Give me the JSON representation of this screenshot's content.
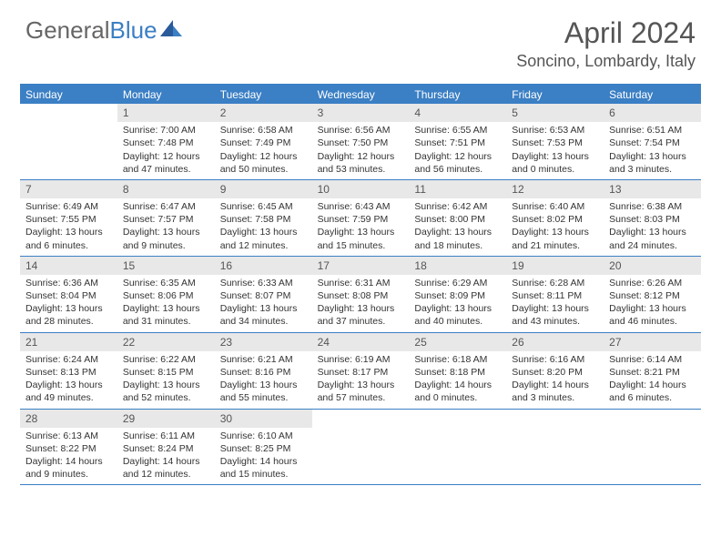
{
  "logo": {
    "part1": "General",
    "part2": "Blue"
  },
  "title": "April 2024",
  "location": "Soncino, Lombardy, Italy",
  "colors": {
    "header_bg": "#3b7fc4",
    "daynum_bg": "#e8e8e8",
    "text": "#333333",
    "title_color": "#555555"
  },
  "day_names": [
    "Sunday",
    "Monday",
    "Tuesday",
    "Wednesday",
    "Thursday",
    "Friday",
    "Saturday"
  ],
  "weeks": [
    [
      {
        "n": "",
        "sr": "",
        "ss": "",
        "dl": ""
      },
      {
        "n": "1",
        "sr": "Sunrise: 7:00 AM",
        "ss": "Sunset: 7:48 PM",
        "dl": "Daylight: 12 hours and 47 minutes."
      },
      {
        "n": "2",
        "sr": "Sunrise: 6:58 AM",
        "ss": "Sunset: 7:49 PM",
        "dl": "Daylight: 12 hours and 50 minutes."
      },
      {
        "n": "3",
        "sr": "Sunrise: 6:56 AM",
        "ss": "Sunset: 7:50 PM",
        "dl": "Daylight: 12 hours and 53 minutes."
      },
      {
        "n": "4",
        "sr": "Sunrise: 6:55 AM",
        "ss": "Sunset: 7:51 PM",
        "dl": "Daylight: 12 hours and 56 minutes."
      },
      {
        "n": "5",
        "sr": "Sunrise: 6:53 AM",
        "ss": "Sunset: 7:53 PM",
        "dl": "Daylight: 13 hours and 0 minutes."
      },
      {
        "n": "6",
        "sr": "Sunrise: 6:51 AM",
        "ss": "Sunset: 7:54 PM",
        "dl": "Daylight: 13 hours and 3 minutes."
      }
    ],
    [
      {
        "n": "7",
        "sr": "Sunrise: 6:49 AM",
        "ss": "Sunset: 7:55 PM",
        "dl": "Daylight: 13 hours and 6 minutes."
      },
      {
        "n": "8",
        "sr": "Sunrise: 6:47 AM",
        "ss": "Sunset: 7:57 PM",
        "dl": "Daylight: 13 hours and 9 minutes."
      },
      {
        "n": "9",
        "sr": "Sunrise: 6:45 AM",
        "ss": "Sunset: 7:58 PM",
        "dl": "Daylight: 13 hours and 12 minutes."
      },
      {
        "n": "10",
        "sr": "Sunrise: 6:43 AM",
        "ss": "Sunset: 7:59 PM",
        "dl": "Daylight: 13 hours and 15 minutes."
      },
      {
        "n": "11",
        "sr": "Sunrise: 6:42 AM",
        "ss": "Sunset: 8:00 PM",
        "dl": "Daylight: 13 hours and 18 minutes."
      },
      {
        "n": "12",
        "sr": "Sunrise: 6:40 AM",
        "ss": "Sunset: 8:02 PM",
        "dl": "Daylight: 13 hours and 21 minutes."
      },
      {
        "n": "13",
        "sr": "Sunrise: 6:38 AM",
        "ss": "Sunset: 8:03 PM",
        "dl": "Daylight: 13 hours and 24 minutes."
      }
    ],
    [
      {
        "n": "14",
        "sr": "Sunrise: 6:36 AM",
        "ss": "Sunset: 8:04 PM",
        "dl": "Daylight: 13 hours and 28 minutes."
      },
      {
        "n": "15",
        "sr": "Sunrise: 6:35 AM",
        "ss": "Sunset: 8:06 PM",
        "dl": "Daylight: 13 hours and 31 minutes."
      },
      {
        "n": "16",
        "sr": "Sunrise: 6:33 AM",
        "ss": "Sunset: 8:07 PM",
        "dl": "Daylight: 13 hours and 34 minutes."
      },
      {
        "n": "17",
        "sr": "Sunrise: 6:31 AM",
        "ss": "Sunset: 8:08 PM",
        "dl": "Daylight: 13 hours and 37 minutes."
      },
      {
        "n": "18",
        "sr": "Sunrise: 6:29 AM",
        "ss": "Sunset: 8:09 PM",
        "dl": "Daylight: 13 hours and 40 minutes."
      },
      {
        "n": "19",
        "sr": "Sunrise: 6:28 AM",
        "ss": "Sunset: 8:11 PM",
        "dl": "Daylight: 13 hours and 43 minutes."
      },
      {
        "n": "20",
        "sr": "Sunrise: 6:26 AM",
        "ss": "Sunset: 8:12 PM",
        "dl": "Daylight: 13 hours and 46 minutes."
      }
    ],
    [
      {
        "n": "21",
        "sr": "Sunrise: 6:24 AM",
        "ss": "Sunset: 8:13 PM",
        "dl": "Daylight: 13 hours and 49 minutes."
      },
      {
        "n": "22",
        "sr": "Sunrise: 6:22 AM",
        "ss": "Sunset: 8:15 PM",
        "dl": "Daylight: 13 hours and 52 minutes."
      },
      {
        "n": "23",
        "sr": "Sunrise: 6:21 AM",
        "ss": "Sunset: 8:16 PM",
        "dl": "Daylight: 13 hours and 55 minutes."
      },
      {
        "n": "24",
        "sr": "Sunrise: 6:19 AM",
        "ss": "Sunset: 8:17 PM",
        "dl": "Daylight: 13 hours and 57 minutes."
      },
      {
        "n": "25",
        "sr": "Sunrise: 6:18 AM",
        "ss": "Sunset: 8:18 PM",
        "dl": "Daylight: 14 hours and 0 minutes."
      },
      {
        "n": "26",
        "sr": "Sunrise: 6:16 AM",
        "ss": "Sunset: 8:20 PM",
        "dl": "Daylight: 14 hours and 3 minutes."
      },
      {
        "n": "27",
        "sr": "Sunrise: 6:14 AM",
        "ss": "Sunset: 8:21 PM",
        "dl": "Daylight: 14 hours and 6 minutes."
      }
    ],
    [
      {
        "n": "28",
        "sr": "Sunrise: 6:13 AM",
        "ss": "Sunset: 8:22 PM",
        "dl": "Daylight: 14 hours and 9 minutes."
      },
      {
        "n": "29",
        "sr": "Sunrise: 6:11 AM",
        "ss": "Sunset: 8:24 PM",
        "dl": "Daylight: 14 hours and 12 minutes."
      },
      {
        "n": "30",
        "sr": "Sunrise: 6:10 AM",
        "ss": "Sunset: 8:25 PM",
        "dl": "Daylight: 14 hours and 15 minutes."
      },
      {
        "n": "",
        "sr": "",
        "ss": "",
        "dl": ""
      },
      {
        "n": "",
        "sr": "",
        "ss": "",
        "dl": ""
      },
      {
        "n": "",
        "sr": "",
        "ss": "",
        "dl": ""
      },
      {
        "n": "",
        "sr": "",
        "ss": "",
        "dl": ""
      }
    ]
  ]
}
